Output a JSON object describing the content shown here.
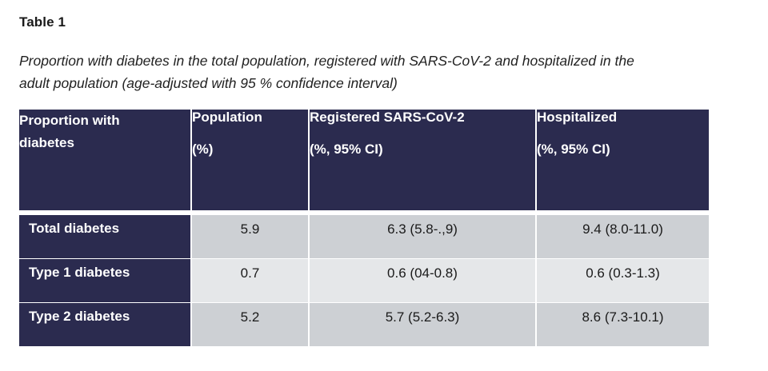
{
  "table_label": "Table 1",
  "caption_line1": "Proportion with diabetes in the total population, registered with SARS-CoV-2 and hospitalized in the",
  "caption_line2": "adult population (age-adjusted with 95 % confidence interval)",
  "columns": [
    {
      "title": "Proportion with",
      "title2": "diabetes",
      "sub": ""
    },
    {
      "title": "Population",
      "sub": "(%)"
    },
    {
      "title": "Registered SARS-CoV-2",
      "sub": "(%, 95% CI)"
    },
    {
      "title": "Hospitalized",
      "sub": "(%, 95% CI)"
    }
  ],
  "rows": [
    {
      "label": "Total diabetes",
      "population": "5.9",
      "registered": "6.3 (5.8-.,9)",
      "hospitalized": "9.4 (8.0-11.0)"
    },
    {
      "label": "Type 1 diabetes",
      "population": "0.7",
      "registered": "0.6 (04-0.8)",
      "hospitalized": "0.6 (0.3-1.3)"
    },
    {
      "label": "Type 2 diabetes",
      "population": "5.2",
      "registered": "5.7 (5.2-6.3)",
      "hospitalized": "8.6 (7.3-10.1)"
    }
  ]
}
